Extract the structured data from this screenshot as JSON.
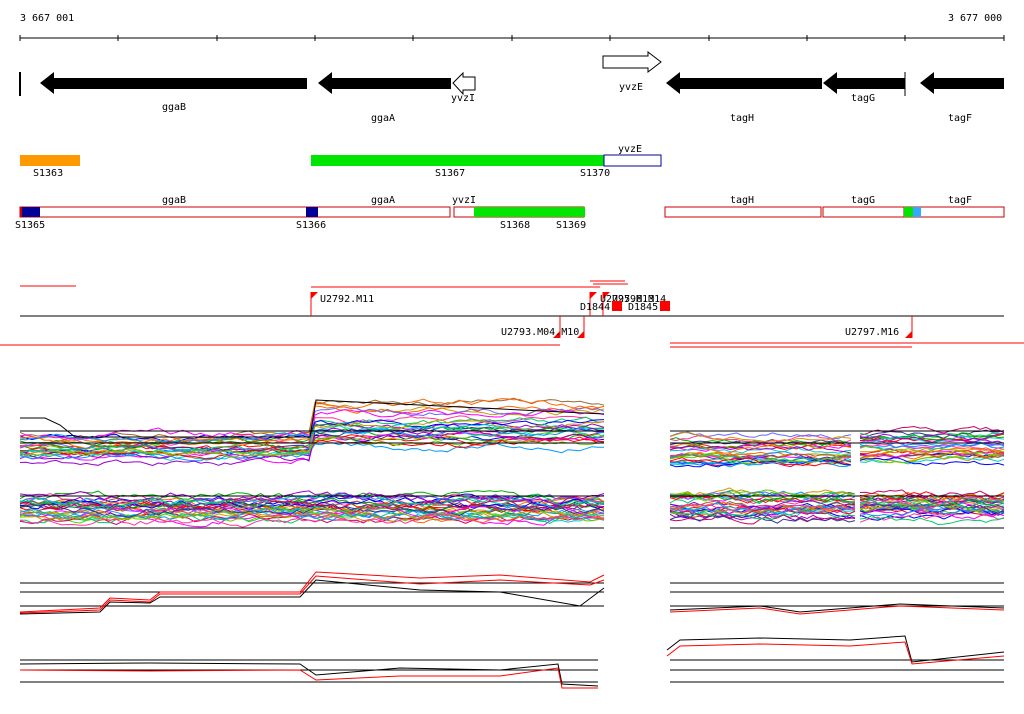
{
  "coordinates": {
    "start": "3 667 001",
    "end": "3 677 000"
  },
  "genes": [
    {
      "name": "ggaB",
      "strand": "-",
      "filled": true
    },
    {
      "name": "ggaA",
      "strand": "-",
      "filled": true
    },
    {
      "name": "yvzI",
      "strand": "-",
      "filled": false
    },
    {
      "name": "yvzE",
      "strand": "+",
      "filled": false
    },
    {
      "name": "tagH",
      "strand": "-",
      "filled": true
    },
    {
      "name": "tagG",
      "strand": "-",
      "filled": true
    },
    {
      "name": "tagF",
      "strand": "-",
      "filled": true
    }
  ],
  "segments_row1": [
    {
      "label": "S1363",
      "color": "#ff9900"
    },
    {
      "label": "S1367",
      "color": "#00e600"
    },
    {
      "label": "S1370",
      "color": "#00e600"
    },
    {
      "label": "yvzE",
      "color": "#ffffff"
    }
  ],
  "segments_row2": {
    "gene_labels": [
      "ggaB",
      "ggaA",
      "yvzI",
      "tagH",
      "tagG",
      "tagF"
    ],
    "site_labels": [
      "S1365",
      "S1366",
      "S1368",
      "S1369"
    ],
    "colors": {
      "outline": "#cc0000",
      "block": "#000099",
      "green": "#00e600",
      "cyan": "#33aaff"
    }
  },
  "probes": {
    "above": [
      "U2792.M11",
      "U2795.M13",
      "U2796.M14"
    ],
    "below": [
      "D1844",
      "D1845",
      "U2793.M04.M10",
      "U2797.M16"
    ],
    "color": "#ff0000"
  },
  "expression_panels": [
    "panel-1",
    "panel-2",
    "panel-3",
    "panel-4"
  ]
}
